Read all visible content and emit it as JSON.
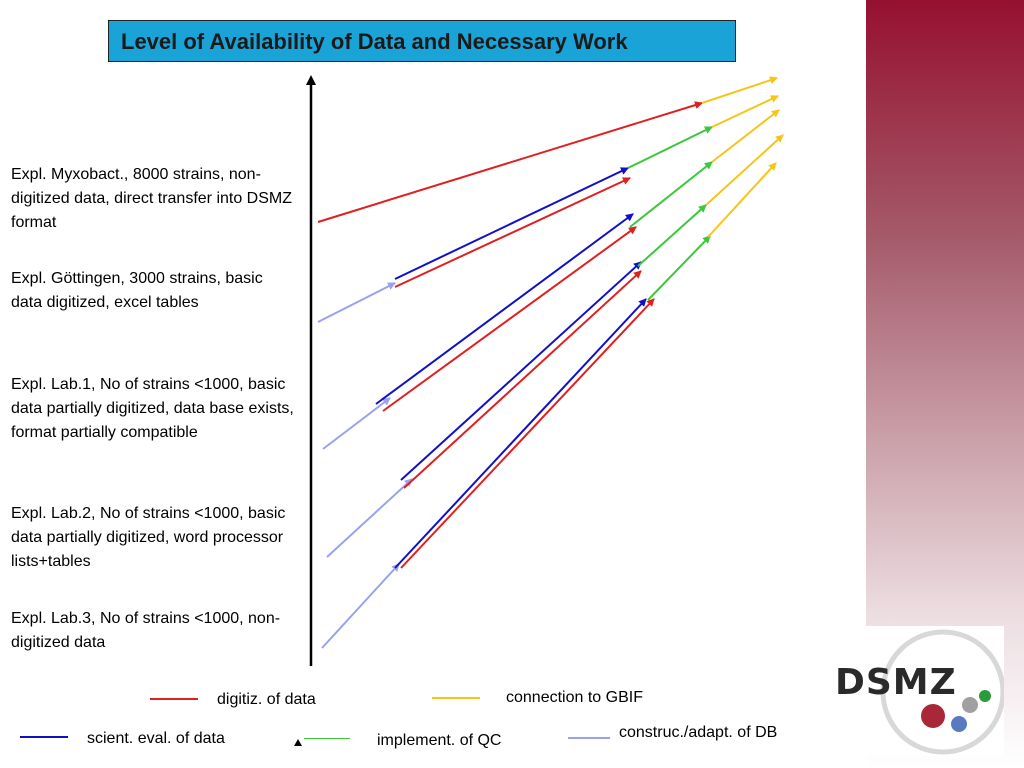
{
  "title": "Level of Availability of Data and Necessary Work",
  "examples": [
    {
      "label": "Expl. Myxobact., 8000 strains, non-digitized data, direct transfer into DSMZ format"
    },
    {
      "label": "Expl. Göttingen, 3000 strains, basic data digitized, excel tables"
    },
    {
      "label": "Expl. Lab.1, No of strains <1000, basic data partially digitized, data base exists, format partially compatible"
    },
    {
      "label": "Expl. Lab.2, No of strains <1000, basic data partially digitized, word processor lists+tables"
    },
    {
      "label": "Expl. Lab.3, No of strains <1000, non-digitized data"
    }
  ],
  "legend": {
    "digitize": {
      "label": "digitiz. of data",
      "color": "#e02020"
    },
    "gbif": {
      "label": "connection to GBIF",
      "color": "#f5c518"
    },
    "eval": {
      "label": "scient. eval. of data",
      "color": "#1010c8"
    },
    "implement": {
      "label": "implement. of QC",
      "color": "#3cc83c"
    },
    "db": {
      "label": "construc./adapt. of DB",
      "color": "#9aa2f0"
    }
  },
  "logo": {
    "text": "DSMZ",
    "dot_colors": [
      "#2a9a3a",
      "#a0a0a0",
      "#a8283a",
      "#5a7ac0"
    ]
  }
}
